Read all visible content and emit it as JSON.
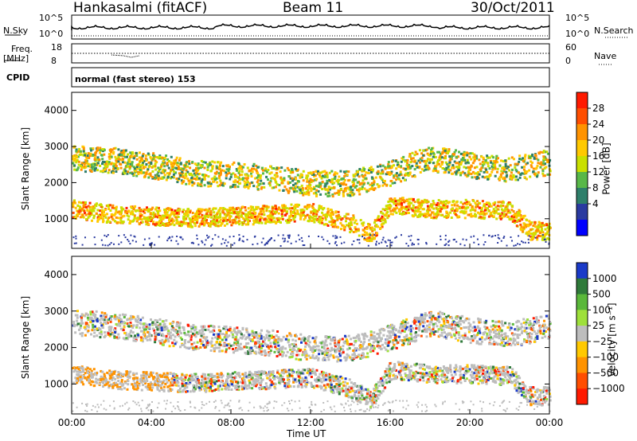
{
  "header": {
    "station": "Hankasalmi (fitACF)",
    "beam": "Beam 11",
    "date": "30/Oct/2011"
  },
  "status_panels": {
    "nsky_label": "N.Sky",
    "nsky_ticks": [
      "10^5",
      "10^0"
    ],
    "nsearch_label": "N.Search",
    "nsearch_ticks": [
      "10^5",
      "10^0"
    ],
    "freq_label_1": "Freq.",
    "freq_label_2": "[MHz]",
    "freq_ticks": [
      "18",
      "8"
    ],
    "nave_label": "Nave",
    "nave_ticks": [
      "60",
      "0"
    ],
    "cpid_label": "CPID",
    "cpid_text": "normal (fast stereo) 153"
  },
  "chart_data": [
    {
      "type": "heatmap",
      "title": "",
      "ylabel": "Slant Range [km]",
      "xlabel": "",
      "ylim": [
        180,
        4500
      ],
      "yticks": [
        "4000",
        "3000",
        "2000",
        "1000"
      ],
      "colorbar": {
        "label": "Power [dB]",
        "ticks": [
          "28",
          "24",
          "20",
          "16",
          "12",
          "8",
          "4"
        ],
        "colors": [
          "#ff1a00",
          "#ff4e00",
          "#ff9300",
          "#ffc900",
          "#c9e000",
          "#58b848",
          "#2e7f6a",
          "#2a3aa0",
          "#0000ff"
        ]
      },
      "bands": [
        {
          "name": "",
          "x": [
            0,
            2,
            4,
            6,
            8,
            10,
            12,
            14,
            16,
            18,
            20,
            22,
            24
          ],
          "y": [
            2700,
            2650,
            2500,
            2300,
            2250,
            2150,
            2000,
            2000,
            2300,
            2700,
            2500,
            2400,
            2600
          ]
        },
        {
          "name": "",
          "x": [
            0,
            2,
            4,
            6,
            8,
            10,
            12,
            14,
            15,
            16,
            18,
            20,
            22,
            23
          ],
          "y": [
            1300,
            1150,
            1100,
            1050,
            1100,
            1150,
            1200,
            900,
            600,
            1400,
            1300,
            1300,
            1250,
            700
          ]
        }
      ]
    },
    {
      "type": "heatmap",
      "title": "",
      "ylabel": "Slant Range [km]",
      "xlabel": "Time UT",
      "ylim": [
        180,
        4500
      ],
      "yticks": [
        "4000",
        "3000",
        "2000",
        "1000"
      ],
      "xticks": [
        "00:00",
        "04:00",
        "08:00",
        "12:00",
        "16:00",
        "20:00",
        "00:00"
      ],
      "colorbar": {
        "label": "Velocity [m s⁻¹]",
        "ticks": [
          "1000",
          "500",
          "100",
          "25",
          "−25",
          "−100",
          "−500",
          "−1000"
        ],
        "colors": [
          "#1a3ac8",
          "#2f7a3a",
          "#5ab83a",
          "#9ee03a",
          "#bdbdbd",
          "#ffc900",
          "#ff9300",
          "#ff4e00",
          "#ff1a00"
        ]
      }
    }
  ]
}
